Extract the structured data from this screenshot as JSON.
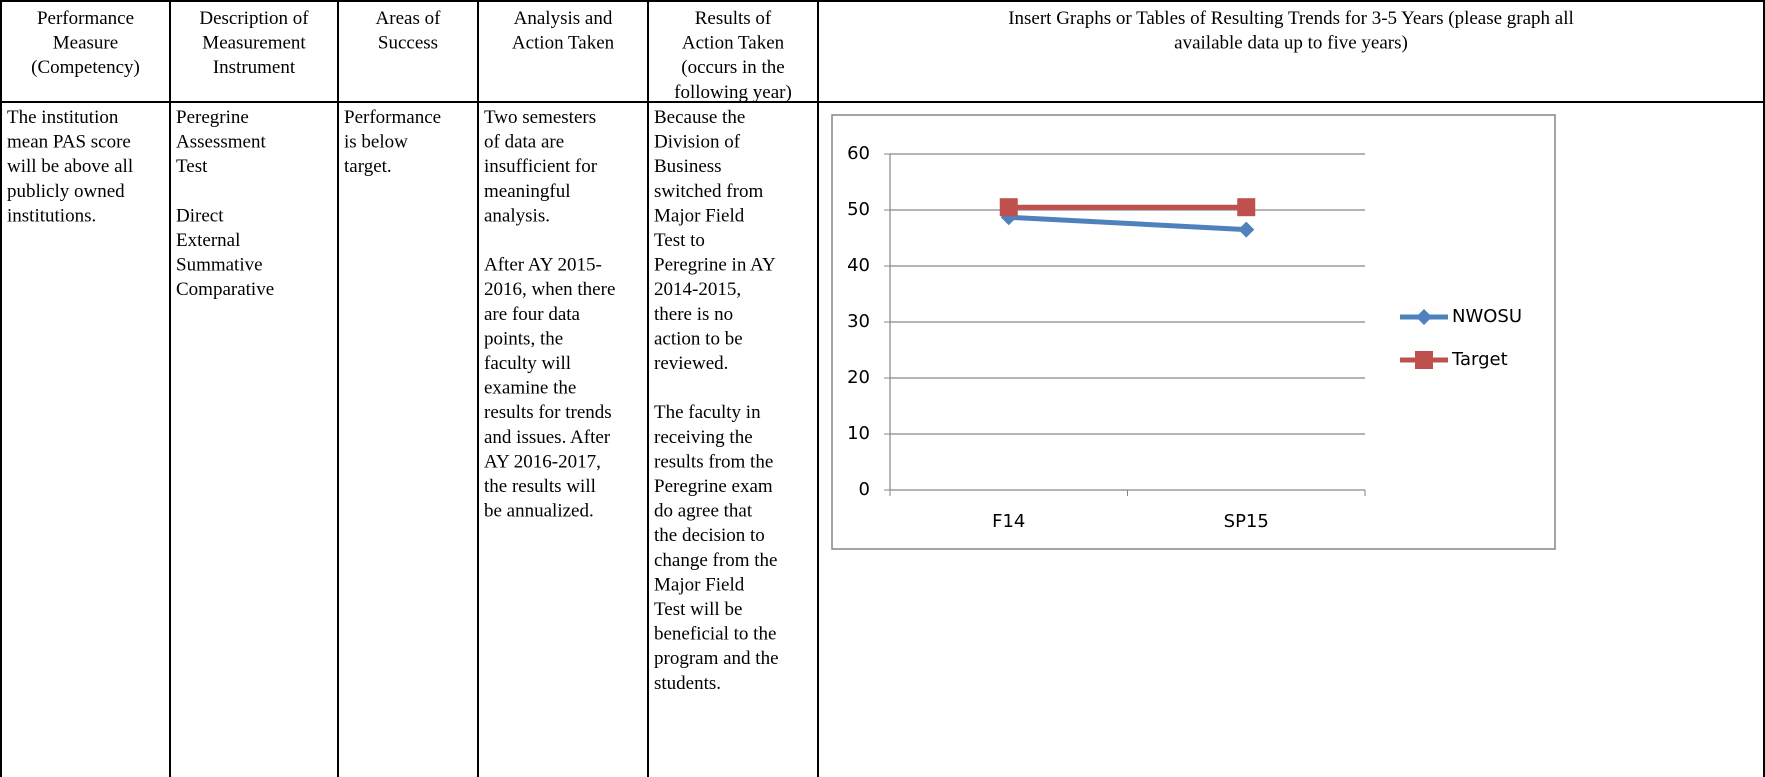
{
  "table": {
    "header": [
      [
        "Performance",
        "Measure",
        "(Competency)"
      ],
      [
        "Description of",
        "Measurement",
        "Instrument"
      ],
      [
        "Areas of",
        "Success"
      ],
      [
        "Analysis and",
        "Action Taken"
      ],
      [
        "Results of",
        "Action Taken",
        "(occurs in the",
        "following year)"
      ],
      [
        "Insert Graphs or Tables of Resulting Trends for 3-5 Years (please graph all",
        "available data up to five years)"
      ]
    ],
    "row": [
      [
        [
          "The institution",
          "mean PAS score",
          "will be above all",
          "publicly owned",
          "institutions."
        ]
      ],
      [
        [
          "Peregrine",
          "Assessment",
          "Test"
        ],
        [
          "Direct",
          "External",
          "Summative",
          "Comparative"
        ]
      ],
      [
        [
          "Performance",
          "is below",
          "target."
        ]
      ],
      [
        [
          "Two semesters",
          "of data are",
          "insufficient for",
          "meaningful",
          "analysis."
        ],
        [
          "After AY 2015-",
          "2016, when there",
          "are four data",
          "points, the",
          "faculty will",
          "examine the",
          "results for trends",
          "and issues.  After",
          "AY 2016-2017,",
          "the results will",
          "be annualized."
        ]
      ],
      [
        [
          "Because the",
          "Division of",
          "Business",
          "switched from",
          "Major Field",
          "Test to",
          "Peregrine in AY",
          "2014-2015,",
          "there is no",
          "action to be",
          "reviewed."
        ],
        [
          "The faculty in",
          "receiving the",
          "results from the",
          "Peregrine exam",
          "do agree that",
          "the decision to",
          "change from the",
          "Major Field",
          "Test will be",
          "beneficial to the",
          "program and the",
          "students."
        ]
      ]
    ]
  },
  "chart_data": {
    "type": "line",
    "categories": [
      "F14",
      "SP15"
    ],
    "series": [
      {
        "name": "NWOSU",
        "color": "#4f81bd",
        "marker": "diamond",
        "values": [
          48.7,
          46.5
        ]
      },
      {
        "name": "Target",
        "color": "#c0504d",
        "marker": "square",
        "values": [
          50.5,
          50.5
        ]
      }
    ],
    "ylim": [
      0,
      60
    ],
    "yticks": [
      0,
      10,
      20,
      30,
      40,
      50,
      60
    ],
    "grid": true,
    "legend": "right"
  }
}
